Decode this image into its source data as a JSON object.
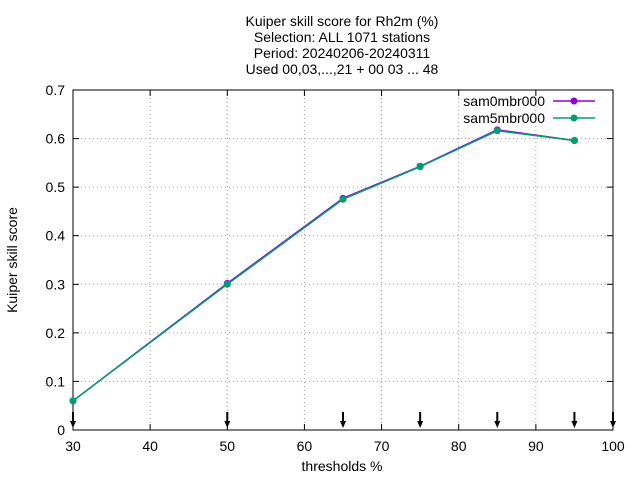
{
  "chart_data": {
    "type": "line",
    "title_lines": [
      "Kuiper skill score  for Rh2m (%)",
      "Selection: ALL    1071 stations",
      "Period: 20240206-20240311",
      "Used 00,03,...,21 + 00 03 ... 48"
    ],
    "xlabel": "thresholds %",
    "ylabel": "Kuiper skill score",
    "xlim": [
      30,
      100
    ],
    "ylim": [
      0,
      0.7
    ],
    "xticks": [
      30,
      40,
      50,
      60,
      70,
      80,
      90,
      100
    ],
    "xtick_labels": [
      "30",
      "40",
      "50",
      "60",
      "70",
      "80",
      "90",
      "100"
    ],
    "yticks": [
      0,
      0.1,
      0.2,
      0.3,
      0.4,
      0.5,
      0.6,
      0.7
    ],
    "ytick_labels": [
      "0",
      "0.1",
      "0.2",
      "0.3",
      "0.4",
      "0.5",
      "0.6",
      "0.7"
    ],
    "grid": true,
    "legend_position": "top-right",
    "threshold_markers_x": [
      30,
      50,
      65,
      75,
      85,
      95,
      100
    ],
    "series": [
      {
        "name": "sam0mbr000",
        "color": "#9400d3",
        "x": [
          30,
          50,
          65,
          75,
          85,
          95
        ],
        "y": [
          0.06,
          0.302,
          0.477,
          0.543,
          0.618,
          0.596
        ]
      },
      {
        "name": "sam5mbr000",
        "color": "#009e73",
        "x": [
          30,
          50,
          65,
          75,
          85,
          95
        ],
        "y": [
          0.06,
          0.3,
          0.475,
          0.542,
          0.616,
          0.596
        ]
      }
    ]
  }
}
